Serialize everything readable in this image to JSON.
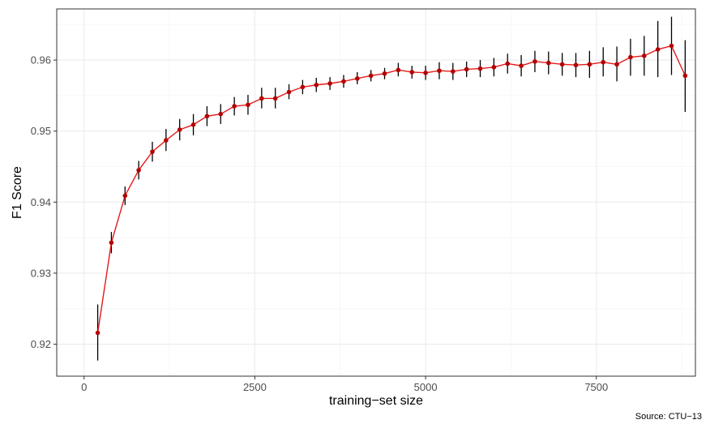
{
  "chart_data": {
    "type": "line",
    "title": "",
    "xlabel": "training−set size",
    "ylabel": "F1 Score",
    "caption": "Source: CTU−13",
    "xlim": [
      -400,
      8950
    ],
    "ylim": [
      0.9155,
      0.9672
    ],
    "x_ticks": [
      0,
      2500,
      5000,
      7500
    ],
    "x_tick_labels": [
      "0",
      "2500",
      "5000",
      "7500"
    ],
    "y_ticks": [
      0.92,
      0.93,
      0.94,
      0.95,
      0.96
    ],
    "y_tick_labels": [
      "0.92",
      "0.93",
      "0.94",
      "0.95",
      "0.96"
    ],
    "grid": true,
    "legend": "none",
    "colors": {
      "line": "#e41a1c",
      "point": "#b30000",
      "errorbar": "#000000",
      "grid_major": "#ebebeb",
      "grid_minor": "#f5f5f5",
      "panel_border": "#333333"
    },
    "series": [
      {
        "points": [
          {
            "x": 200,
            "y": 0.9216,
            "lo": 0.9177,
            "hi": 0.9256
          },
          {
            "x": 400,
            "y": 0.9343,
            "lo": 0.9328,
            "hi": 0.9358
          },
          {
            "x": 600,
            "y": 0.9409,
            "lo": 0.9396,
            "hi": 0.9422
          },
          {
            "x": 800,
            "y": 0.9445,
            "lo": 0.9432,
            "hi": 0.9458
          },
          {
            "x": 1000,
            "y": 0.9471,
            "lo": 0.9457,
            "hi": 0.9485
          },
          {
            "x": 1200,
            "y": 0.9487,
            "lo": 0.9472,
            "hi": 0.9503
          },
          {
            "x": 1400,
            "y": 0.9502,
            "lo": 0.9487,
            "hi": 0.9517
          },
          {
            "x": 1600,
            "y": 0.9509,
            "lo": 0.9494,
            "hi": 0.9524
          },
          {
            "x": 1800,
            "y": 0.9521,
            "lo": 0.9507,
            "hi": 0.9535
          },
          {
            "x": 2000,
            "y": 0.9524,
            "lo": 0.951,
            "hi": 0.9538
          },
          {
            "x": 2200,
            "y": 0.9535,
            "lo": 0.9522,
            "hi": 0.9548
          },
          {
            "x": 2400,
            "y": 0.9537,
            "lo": 0.9523,
            "hi": 0.9551
          },
          {
            "x": 2600,
            "y": 0.9546,
            "lo": 0.9532,
            "hi": 0.9561
          },
          {
            "x": 2800,
            "y": 0.9546,
            "lo": 0.9532,
            "hi": 0.9561
          },
          {
            "x": 3000,
            "y": 0.9555,
            "lo": 0.9545,
            "hi": 0.9566
          },
          {
            "x": 3200,
            "y": 0.9562,
            "lo": 0.9552,
            "hi": 0.9572
          },
          {
            "x": 3400,
            "y": 0.9565,
            "lo": 0.9555,
            "hi": 0.9575
          },
          {
            "x": 3600,
            "y": 0.9567,
            "lo": 0.9558,
            "hi": 0.9576
          },
          {
            "x": 3800,
            "y": 0.957,
            "lo": 0.9561,
            "hi": 0.9579
          },
          {
            "x": 4000,
            "y": 0.9574,
            "lo": 0.9566,
            "hi": 0.9583
          },
          {
            "x": 4200,
            "y": 0.9578,
            "lo": 0.957,
            "hi": 0.9586
          },
          {
            "x": 4400,
            "y": 0.9581,
            "lo": 0.9573,
            "hi": 0.9589
          },
          {
            "x": 4600,
            "y": 0.9586,
            "lo": 0.9577,
            "hi": 0.9596
          },
          {
            "x": 4800,
            "y": 0.9583,
            "lo": 0.9574,
            "hi": 0.9592
          },
          {
            "x": 5000,
            "y": 0.9582,
            "lo": 0.9572,
            "hi": 0.9592
          },
          {
            "x": 5200,
            "y": 0.9585,
            "lo": 0.9573,
            "hi": 0.9597
          },
          {
            "x": 5400,
            "y": 0.9584,
            "lo": 0.9572,
            "hi": 0.9596
          },
          {
            "x": 5600,
            "y": 0.9587,
            "lo": 0.9576,
            "hi": 0.9598
          },
          {
            "x": 5800,
            "y": 0.9588,
            "lo": 0.9576,
            "hi": 0.96
          },
          {
            "x": 6000,
            "y": 0.959,
            "lo": 0.9577,
            "hi": 0.9603
          },
          {
            "x": 6200,
            "y": 0.9595,
            "lo": 0.9581,
            "hi": 0.9609
          },
          {
            "x": 6400,
            "y": 0.9592,
            "lo": 0.9577,
            "hi": 0.9607
          },
          {
            "x": 6600,
            "y": 0.9598,
            "lo": 0.9583,
            "hi": 0.9613
          },
          {
            "x": 6800,
            "y": 0.9596,
            "lo": 0.958,
            "hi": 0.9612
          },
          {
            "x": 7000,
            "y": 0.9594,
            "lo": 0.9578,
            "hi": 0.961
          },
          {
            "x": 7200,
            "y": 0.9593,
            "lo": 0.9576,
            "hi": 0.961
          },
          {
            "x": 7400,
            "y": 0.9594,
            "lo": 0.9575,
            "hi": 0.9613
          },
          {
            "x": 7600,
            "y": 0.9597,
            "lo": 0.9577,
            "hi": 0.9618
          },
          {
            "x": 7800,
            "y": 0.9594,
            "lo": 0.957,
            "hi": 0.9619
          },
          {
            "x": 8000,
            "y": 0.9604,
            "lo": 0.9578,
            "hi": 0.963
          },
          {
            "x": 8200,
            "y": 0.9606,
            "lo": 0.9578,
            "hi": 0.9634
          },
          {
            "x": 8400,
            "y": 0.9615,
            "lo": 0.9576,
            "hi": 0.9655
          },
          {
            "x": 8600,
            "y": 0.962,
            "lo": 0.9579,
            "hi": 0.9661
          },
          {
            "x": 8800,
            "y": 0.9578,
            "lo": 0.9527,
            "hi": 0.9628
          }
        ]
      }
    ]
  }
}
